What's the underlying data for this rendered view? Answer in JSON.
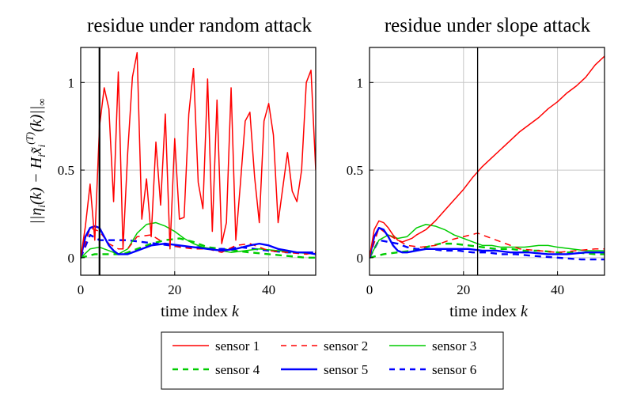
{
  "chart_data": [
    {
      "type": "line",
      "title": "residue under random attack",
      "xlabel": "time index k",
      "ylabel": "||η_i(k) − H_i x̃_i^(T)(k)||_∞",
      "xlim": [
        0,
        50
      ],
      "ylim": [
        -0.1,
        1.2
      ],
      "xticks": [
        "0",
        "20",
        "40"
      ],
      "xtick_values": [
        0,
        20,
        40
      ],
      "yticks": [
        "0",
        "0.5",
        "1"
      ],
      "ytick_values": [
        0,
        0.5,
        1
      ],
      "grid": true,
      "attack_time": 4,
      "series": [
        {
          "name": "sensor 1",
          "color": "#ff0000",
          "style": "solid-thin",
          "x": [
            0,
            1,
            2,
            3,
            4,
            5,
            6,
            7,
            8,
            9,
            10,
            11,
            12,
            13,
            14,
            15,
            16,
            17,
            18,
            19,
            20,
            21,
            22,
            23,
            24,
            25,
            26,
            27,
            28,
            29,
            30,
            31,
            32,
            33,
            34,
            35,
            36,
            37,
            38,
            39,
            40,
            41,
            42,
            43,
            44,
            45,
            46,
            47,
            48,
            49,
            50
          ],
          "y": [
            0,
            0.18,
            0.42,
            0.1,
            0.75,
            0.97,
            0.85,
            0.32,
            1.06,
            0.05,
            0.6,
            1.03,
            1.17,
            0.22,
            0.45,
            0.12,
            0.66,
            0.3,
            0.82,
            0.05,
            0.68,
            0.22,
            0.23,
            0.82,
            1.08,
            0.43,
            0.28,
            1.02,
            0.15,
            0.9,
            0.08,
            0.2,
            0.97,
            0.1,
            0.43,
            0.78,
            0.83,
            0.46,
            0.2,
            0.78,
            0.88,
            0.7,
            0.2,
            0.4,
            0.6,
            0.38,
            0.32,
            0.5,
            1.0,
            1.07,
            0.5
          ]
        },
        {
          "name": "sensor 2",
          "color": "#ff0000",
          "style": "dashed-thin",
          "x": [
            0,
            2,
            4,
            6,
            8,
            10,
            12,
            15,
            18,
            21,
            24,
            27,
            30,
            33,
            36,
            40,
            44,
            48,
            50
          ],
          "y": [
            0,
            0.17,
            0.15,
            0.08,
            0.05,
            0.05,
            0.12,
            0.13,
            0.08,
            0.06,
            0.05,
            0.05,
            0.03,
            0.07,
            0.08,
            0.04,
            0.03,
            0.02,
            0.03
          ]
        },
        {
          "name": "sensor 3",
          "color": "#00cc00",
          "style": "solid-thin",
          "x": [
            0,
            2,
            4,
            6,
            8,
            10,
            12,
            14,
            16,
            18,
            20,
            22,
            24,
            26,
            28,
            30,
            32,
            35,
            38,
            42,
            46,
            50
          ],
          "y": [
            0,
            0.05,
            0.06,
            0.04,
            0.02,
            0.05,
            0.14,
            0.19,
            0.2,
            0.18,
            0.15,
            0.11,
            0.08,
            0.06,
            0.05,
            0.04,
            0.03,
            0.04,
            0.05,
            0.04,
            0.03,
            0.02
          ]
        },
        {
          "name": "sensor 4",
          "color": "#00cc00",
          "style": "dashed-thick",
          "x": [
            0,
            3,
            6,
            9,
            12,
            15,
            18,
            21,
            24,
            27,
            30,
            33,
            36,
            40,
            44,
            48,
            50
          ],
          "y": [
            0,
            0.02,
            0.02,
            0.02,
            0.05,
            0.08,
            0.1,
            0.11,
            0.09,
            0.06,
            0.05,
            0.04,
            0.03,
            0.02,
            0.01,
            0.0,
            0.0
          ]
        },
        {
          "name": "sensor 5",
          "color": "#0000ff",
          "style": "solid-thick",
          "x": [
            0,
            1,
            2,
            3,
            4,
            5,
            6,
            7,
            8,
            10,
            12,
            15,
            18,
            21,
            24,
            27,
            30,
            33,
            36,
            38,
            40,
            42,
            44,
            46,
            48,
            50
          ],
          "y": [
            0,
            0.12,
            0.17,
            0.18,
            0.17,
            0.12,
            0.07,
            0.04,
            0.02,
            0.02,
            0.04,
            0.07,
            0.08,
            0.07,
            0.06,
            0.05,
            0.04,
            0.05,
            0.07,
            0.08,
            0.07,
            0.05,
            0.04,
            0.03,
            0.03,
            0.02
          ]
        },
        {
          "name": "sensor 6",
          "color": "#0000ff",
          "style": "dashed-thick",
          "x": [
            0,
            2,
            4,
            6,
            8,
            10,
            13,
            16,
            19,
            22,
            25,
            28,
            31,
            34,
            37,
            40,
            44,
            48,
            50
          ],
          "y": [
            0,
            0.13,
            0.1,
            0.1,
            0.1,
            0.1,
            0.09,
            0.08,
            0.07,
            0.06,
            0.06,
            0.05,
            0.05,
            0.06,
            0.05,
            0.04,
            0.03,
            0.03,
            0.03
          ]
        }
      ]
    },
    {
      "type": "line",
      "title": "residue under slope attack",
      "xlabel": "time index k",
      "xlim": [
        0,
        50
      ],
      "ylim": [
        -0.1,
        1.2
      ],
      "xticks": [
        "0",
        "20",
        "40"
      ],
      "xtick_values": [
        0,
        20,
        40
      ],
      "yticks": [
        "0",
        "0.5",
        "1"
      ],
      "ytick_values": [
        0,
        0.5,
        1
      ],
      "grid": true,
      "attack_time": 23,
      "series": [
        {
          "name": "sensor 1",
          "color": "#ff0000",
          "style": "solid-thin",
          "x": [
            0,
            1,
            2,
            3,
            4,
            5,
            6,
            7,
            8,
            9,
            10,
            12,
            14,
            16,
            18,
            20,
            22,
            24,
            26,
            28,
            30,
            32,
            34,
            36,
            38,
            40,
            42,
            44,
            46,
            48,
            50
          ],
          "y": [
            0,
            0.16,
            0.21,
            0.2,
            0.17,
            0.13,
            0.1,
            0.09,
            0.1,
            0.11,
            0.13,
            0.16,
            0.21,
            0.27,
            0.33,
            0.39,
            0.46,
            0.52,
            0.57,
            0.62,
            0.67,
            0.72,
            0.76,
            0.8,
            0.85,
            0.89,
            0.94,
            0.98,
            1.03,
            1.1,
            1.15
          ]
        },
        {
          "name": "sensor 2",
          "color": "#ff0000",
          "style": "dashed-thin",
          "x": [
            0,
            2,
            4,
            6,
            8,
            11,
            14,
            17,
            20,
            23,
            26,
            29,
            32,
            36,
            40,
            44,
            48,
            50
          ],
          "y": [
            0,
            0.17,
            0.13,
            0.1,
            0.07,
            0.06,
            0.07,
            0.1,
            0.12,
            0.14,
            0.11,
            0.08,
            0.05,
            0.04,
            0.03,
            0.04,
            0.05,
            0.05
          ]
        },
        {
          "name": "sensor 3",
          "color": "#00cc00",
          "style": "solid-thin",
          "x": [
            0,
            2,
            4,
            6,
            8,
            10,
            12,
            14,
            16,
            18,
            20,
            22,
            24,
            26,
            28,
            30,
            33,
            36,
            38,
            40,
            43,
            46,
            50
          ],
          "y": [
            0,
            0.1,
            0.13,
            0.11,
            0.12,
            0.17,
            0.19,
            0.18,
            0.16,
            0.13,
            0.11,
            0.09,
            0.07,
            0.07,
            0.06,
            0.06,
            0.06,
            0.07,
            0.07,
            0.06,
            0.05,
            0.04,
            0.04
          ]
        },
        {
          "name": "sensor 4",
          "color": "#00cc00",
          "style": "dashed-thick",
          "x": [
            0,
            3,
            6,
            9,
            12,
            15,
            18,
            21,
            24,
            27,
            30,
            33,
            36,
            40,
            44,
            48,
            50
          ],
          "y": [
            0,
            0.02,
            0.03,
            0.04,
            0.06,
            0.08,
            0.08,
            0.07,
            0.06,
            0.05,
            0.05,
            0.04,
            0.04,
            0.03,
            0.03,
            0.02,
            0.02
          ]
        },
        {
          "name": "sensor 5",
          "color": "#0000ff",
          "style": "solid-thick",
          "x": [
            0,
            1,
            2,
            3,
            4,
            5,
            6,
            7,
            8,
            10,
            12,
            15,
            18,
            21,
            24,
            27,
            30,
            34,
            38,
            42,
            46,
            50
          ],
          "y": [
            0,
            0.12,
            0.17,
            0.16,
            0.12,
            0.07,
            0.04,
            0.03,
            0.03,
            0.04,
            0.05,
            0.05,
            0.05,
            0.05,
            0.04,
            0.04,
            0.03,
            0.03,
            0.02,
            0.02,
            0.03,
            0.03
          ]
        },
        {
          "name": "sensor 6",
          "color": "#0000ff",
          "style": "dashed-thick",
          "x": [
            0,
            2,
            4,
            6,
            8,
            10,
            13,
            16,
            19,
            22,
            25,
            28,
            31,
            35,
            40,
            45,
            50
          ],
          "y": [
            0,
            0.1,
            0.09,
            0.08,
            0.06,
            0.05,
            0.05,
            0.04,
            0.04,
            0.03,
            0.03,
            0.02,
            0.02,
            0.01,
            0.0,
            -0.01,
            -0.01
          ]
        }
      ]
    }
  ],
  "legend": {
    "placement": "bottom-center",
    "entries": [
      {
        "label": "sensor 1",
        "color": "#ff0000",
        "style": "solid-thin"
      },
      {
        "label": "sensor 2",
        "color": "#ff0000",
        "style": "dashed-thin"
      },
      {
        "label": "sensor 3",
        "color": "#00cc00",
        "style": "solid-thin"
      },
      {
        "label": "sensor 4",
        "color": "#00cc00",
        "style": "dashed-thick"
      },
      {
        "label": "sensor 5",
        "color": "#0000ff",
        "style": "solid-thick"
      },
      {
        "label": "sensor 6",
        "color": "#0000ff",
        "style": "dashed-thick"
      }
    ]
  }
}
